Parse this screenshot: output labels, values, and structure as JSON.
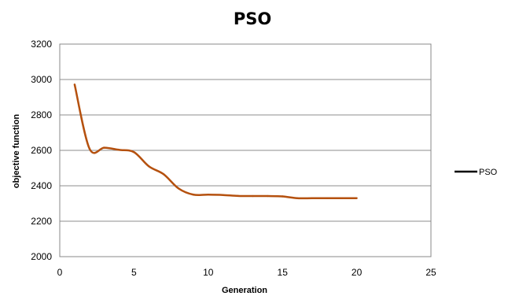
{
  "chart_data": {
    "type": "line",
    "title": "PSO",
    "xlabel": "Generation",
    "ylabel": "objective function",
    "xlim": [
      0,
      25
    ],
    "ylim": [
      2000,
      3200
    ],
    "xticks": [
      0,
      5,
      10,
      15,
      20,
      25
    ],
    "yticks": [
      2000,
      2200,
      2400,
      2600,
      2800,
      3000,
      3200
    ],
    "grid": "horizontal",
    "legend": "right",
    "series": [
      {
        "name": "PSO",
        "color": "#b5510f",
        "x": [
          1,
          2,
          3,
          4,
          5,
          6,
          7,
          8,
          9,
          10,
          11,
          12,
          13,
          14,
          15,
          16,
          17,
          18,
          19,
          20
        ],
        "y": [
          2972,
          2610,
          2615,
          2603,
          2590,
          2510,
          2465,
          2385,
          2350,
          2350,
          2348,
          2343,
          2342,
          2342,
          2340,
          2330,
          2330,
          2330,
          2330,
          2330
        ]
      }
    ]
  }
}
